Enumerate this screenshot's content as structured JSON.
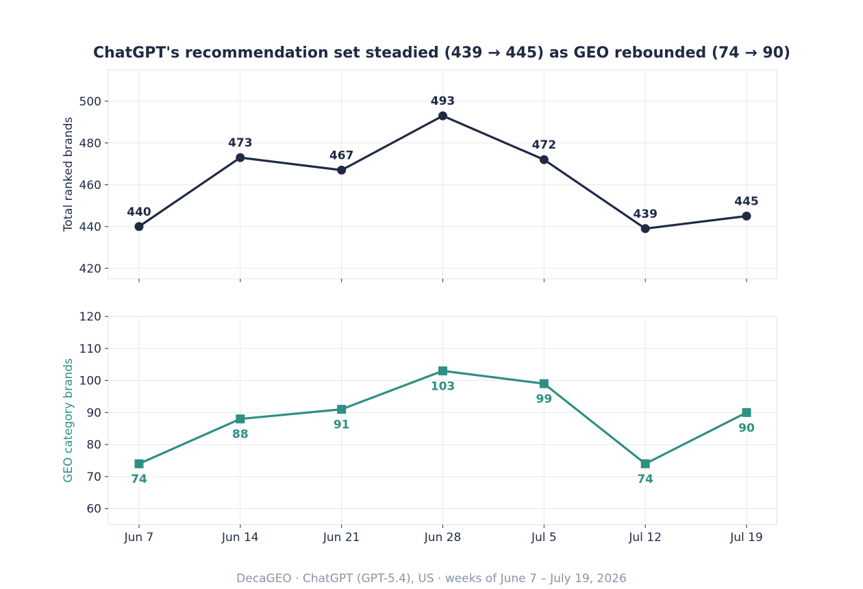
{
  "chart_data": {
    "type": "line",
    "title": "ChatGPT's recommendation set steadied (439 → 445) as GEO rebounded (74 → 90)",
    "footer": "DecaGEO · ChatGPT (GPT-5.4), US · weeks of June 7 – July 19, 2026",
    "categories": [
      "Jun 7",
      "Jun 14",
      "Jun 21",
      "Jun 28",
      "Jul 5",
      "Jul 12",
      "Jul 19"
    ],
    "grid": true,
    "panels": [
      {
        "ylabel": "Total ranked brands",
        "ylim": [
          415,
          515
        ],
        "yticks": [
          420,
          440,
          460,
          480,
          500
        ],
        "color": "#1f2a44",
        "marker": "circle",
        "label_position": "above",
        "series": [
          {
            "values": [
              440,
              473,
              467,
              493,
              472,
              439,
              445
            ]
          }
        ]
      },
      {
        "ylabel": "GEO category brands",
        "ylim": [
          55,
          120
        ],
        "yticks": [
          60,
          70,
          80,
          90,
          100,
          110,
          120
        ],
        "color": "#2f8f83",
        "marker": "square",
        "label_position": "below",
        "series": [
          {
            "values": [
              74,
              88,
              91,
              103,
              99,
              74,
              90
            ]
          }
        ]
      }
    ]
  }
}
